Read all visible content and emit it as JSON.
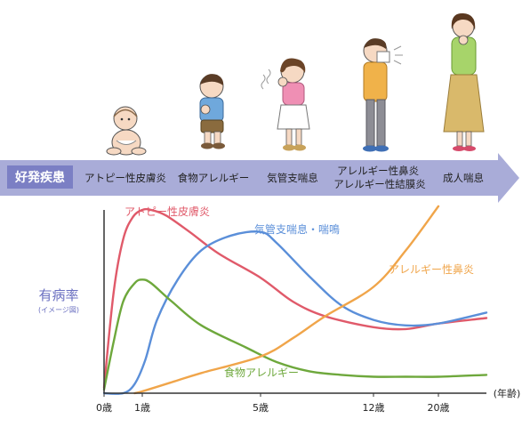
{
  "banner": {
    "category_label": "好発疾患",
    "stages": [
      "アトピー性皮膚炎",
      "食物アレルギー",
      "気管支喘息",
      "アレルギー性鼻炎\nアレルギー性結膜炎",
      "成人喘息"
    ]
  },
  "illustrations": [
    "baby-figure",
    "toddler-figure",
    "girl-coughing-figure",
    "boy-sneezing-figure",
    "woman-coughing-figure"
  ],
  "colors": {
    "banner": "#a9acd8",
    "banner_label_bg": "#7b7fc4",
    "atopic": "#e05a6a",
    "asthma": "#5b8fd9",
    "food": "#6ea83c",
    "rhinitis": "#f0a54a",
    "ylabel": "#6a6fc0"
  },
  "chart_data": {
    "type": "line",
    "ylabel": "有病率",
    "ylabel_note": "(イメージ図)",
    "xunit_label": "(年齢)",
    "x_ticks": [
      {
        "label": "0歳",
        "t": 0
      },
      {
        "label": "1歳",
        "t": 1
      },
      {
        "label": "5歳",
        "t": 5
      },
      {
        "label": "12歳",
        "t": 12
      },
      {
        "label": "20歳",
        "t": 20
      }
    ],
    "series": [
      {
        "name": "アトピー性皮膚炎",
        "color_key": "atopic",
        "points": [
          [
            0,
            0.03
          ],
          [
            0.25,
            0.55
          ],
          [
            0.5,
            0.84
          ],
          [
            0.75,
            0.96
          ],
          [
            1,
            1.0
          ],
          [
            1.3,
            1.0
          ],
          [
            1.8,
            0.97
          ],
          [
            2.6,
            0.88
          ],
          [
            3.6,
            0.76
          ],
          [
            5,
            0.63
          ],
          [
            7,
            0.5
          ],
          [
            9,
            0.42
          ],
          [
            12,
            0.36
          ],
          [
            16,
            0.35
          ],
          [
            20,
            0.38
          ],
          [
            24,
            0.41
          ]
        ]
      },
      {
        "name": "気管支喘息・喘鳴",
        "color_key": "asthma",
        "points": [
          [
            0,
            0.0
          ],
          [
            0.5,
            0.0
          ],
          [
            0.8,
            0.05
          ],
          [
            1.1,
            0.18
          ],
          [
            1.5,
            0.4
          ],
          [
            2.2,
            0.62
          ],
          [
            3,
            0.78
          ],
          [
            4,
            0.86
          ],
          [
            5,
            0.88
          ],
          [
            6,
            0.82
          ],
          [
            8,
            0.64
          ],
          [
            10,
            0.48
          ],
          [
            12,
            0.4
          ],
          [
            16,
            0.37
          ],
          [
            20,
            0.38
          ],
          [
            24,
            0.44
          ]
        ]
      },
      {
        "name": "食物アレルギー",
        "color_key": "food",
        "points": [
          [
            0,
            0.02
          ],
          [
            0.25,
            0.28
          ],
          [
            0.5,
            0.5
          ],
          [
            0.8,
            0.6
          ],
          [
            1,
            0.62
          ],
          [
            1.3,
            0.6
          ],
          [
            2,
            0.5
          ],
          [
            3,
            0.37
          ],
          [
            4.5,
            0.25
          ],
          [
            6,
            0.17
          ],
          [
            8,
            0.12
          ],
          [
            10,
            0.1
          ],
          [
            12,
            0.09
          ],
          [
            16,
            0.09
          ],
          [
            20,
            0.09
          ],
          [
            24,
            0.1
          ]
        ]
      },
      {
        "name": "アレルギー性鼻炎",
        "color_key": "rhinitis",
        "points": [
          [
            0.8,
            0.0
          ],
          [
            1,
            0.01
          ],
          [
            2,
            0.06
          ],
          [
            3,
            0.11
          ],
          [
            5,
            0.2
          ],
          [
            7,
            0.3
          ],
          [
            9,
            0.42
          ],
          [
            12,
            0.58
          ],
          [
            16,
            0.78
          ],
          [
            20,
            1.02
          ]
        ]
      }
    ],
    "series_labels": [
      "アトピー性皮膚炎",
      "気管支喘息・喘鳴",
      "アレルギー性鼻炎",
      "食物アレルギー"
    ]
  }
}
